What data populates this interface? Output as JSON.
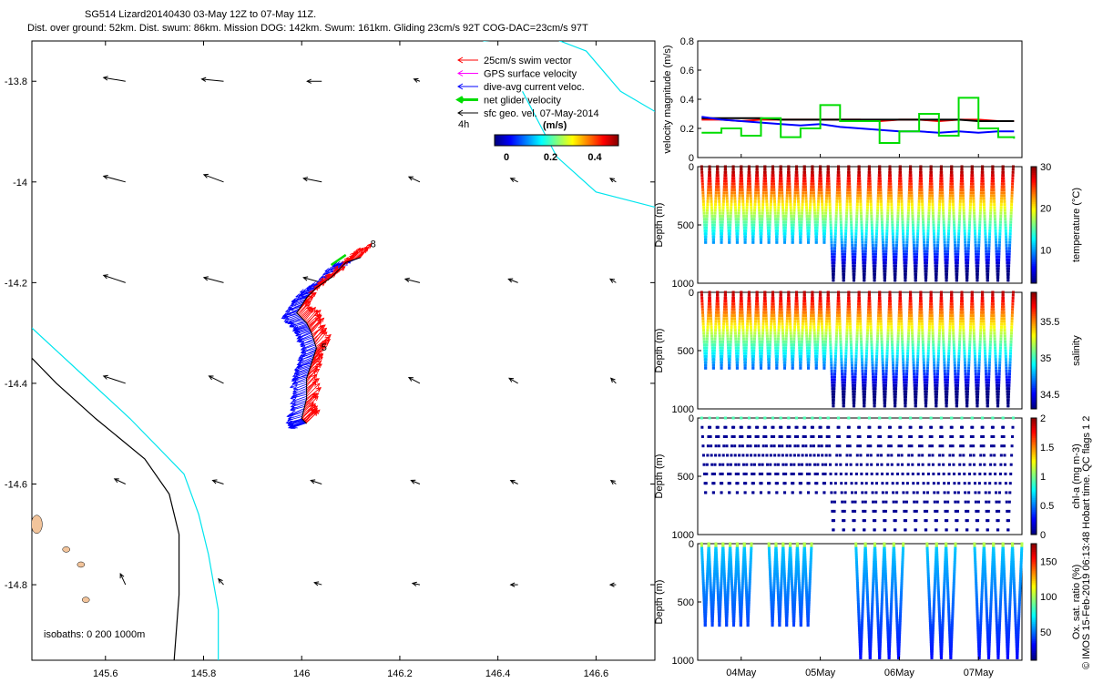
{
  "title": {
    "line1": "SG514 Lizard20140430 03-May 12Z to 07-May 11Z.",
    "line2": "Dist. over ground: 52km. Dist. swum: 86km. Mission DOG: 142km. Swum: 161km. Gliding 23cm/s 92T COG-DAC=23cm/s 97T"
  },
  "copyright": "© IMOS 15-Feb-2019 06:13:48 Hobart time. QC flags 1 2",
  "colors": {
    "red": "#ff0000",
    "magenta": "#ff00ff",
    "blue": "#0000ff",
    "green": "#00dd00",
    "black": "#000000",
    "cyan": "#00e5ee",
    "land": "#f2c49b"
  },
  "chart_data": [
    {
      "type": "scatter",
      "name": "track map",
      "xlim": [
        145.45,
        146.72
      ],
      "ylim": [
        -14.95,
        -13.72
      ],
      "xticks": [
        145.6,
        145.8,
        146,
        146.2,
        146.4,
        146.6
      ],
      "xtick_labels": [
        "145.6",
        "145.8",
        "146",
        "146.2",
        "146.4",
        "146.6"
      ],
      "yticks": [
        -13.8,
        -14,
        -14.2,
        -14.4,
        -14.6,
        -14.8
      ],
      "ytick_labels": [
        "-13.8",
        "-14",
        "-14.2",
        "-14.4",
        "-14.6",
        "-14.8"
      ],
      "legend": {
        "placement": "top-right",
        "items": [
          {
            "label": "25cm/s swim vector",
            "color": "#ff0000"
          },
          {
            "label": "GPS surface velocity",
            "color": "#ff00ff"
          },
          {
            "label": "dive-avg current veloc.",
            "color": "#0000ff"
          },
          {
            "label": "net glider velocity",
            "color": "#00dd00"
          },
          {
            "label": "sfc geo. vel. 07-May-2014",
            "color": "#000000"
          }
        ],
        "time_label": "4h",
        "colorbar_title": "(m/s)",
        "colorbar_ticks": [
          "0",
          "0.2",
          "0.4"
        ]
      },
      "isobaths_label": "isobaths: 0   200  1000m",
      "track_labels": [
        "8",
        "5"
      ],
      "track": [
        [
          146.12,
          -14.15
        ],
        [
          146.09,
          -14.16
        ],
        [
          146.06,
          -14.19
        ],
        [
          146.03,
          -14.21
        ],
        [
          146.01,
          -14.23
        ],
        [
          145.99,
          -14.26
        ],
        [
          146.01,
          -14.28
        ],
        [
          146.02,
          -14.3
        ],
        [
          146.03,
          -14.33
        ],
        [
          146.02,
          -14.36
        ],
        [
          146.01,
          -14.39
        ],
        [
          146.01,
          -14.43
        ],
        [
          146.0,
          -14.47
        ],
        [
          146.01,
          -14.48
        ]
      ],
      "geo_arrows": [
        {
          "lon": 145.6,
          "lat": -13.8,
          "u": -0.3,
          "v": 0.05
        },
        {
          "lon": 145.8,
          "lat": -13.8,
          "u": -0.3,
          "v": 0.03
        },
        {
          "lon": 146.0,
          "lat": -13.8,
          "u": -0.2,
          "v": 0.0
        },
        {
          "lon": 146.2,
          "lat": -13.8,
          "u": -0.08,
          "v": 0.03
        },
        {
          "lon": 145.6,
          "lat": -14.0,
          "u": -0.3,
          "v": 0.08
        },
        {
          "lon": 145.8,
          "lat": -14.0,
          "u": -0.27,
          "v": 0.1
        },
        {
          "lon": 146.0,
          "lat": -14.0,
          "u": -0.25,
          "v": 0.05
        },
        {
          "lon": 146.2,
          "lat": -14.0,
          "u": -0.15,
          "v": 0.07
        },
        {
          "lon": 146.4,
          "lat": -14.0,
          "u": -0.1,
          "v": 0.05
        },
        {
          "lon": 146.6,
          "lat": -14.0,
          "u": -0.08,
          "v": 0.05
        },
        {
          "lon": 145.6,
          "lat": -14.2,
          "u": -0.3,
          "v": 0.1
        },
        {
          "lon": 145.8,
          "lat": -14.2,
          "u": -0.27,
          "v": 0.07
        },
        {
          "lon": 146.0,
          "lat": -14.2,
          "u": -0.25,
          "v": 0.07
        },
        {
          "lon": 146.2,
          "lat": -14.2,
          "u": -0.2,
          "v": 0.05
        },
        {
          "lon": 146.4,
          "lat": -14.2,
          "u": -0.13,
          "v": 0.05
        },
        {
          "lon": 146.6,
          "lat": -14.2,
          "u": -0.08,
          "v": 0.05
        },
        {
          "lon": 145.6,
          "lat": -14.4,
          "u": -0.3,
          "v": 0.1
        },
        {
          "lon": 145.8,
          "lat": -14.4,
          "u": -0.2,
          "v": 0.1
        },
        {
          "lon": 146.2,
          "lat": -14.4,
          "u": -0.15,
          "v": 0.08
        },
        {
          "lon": 146.4,
          "lat": -14.4,
          "u": -0.12,
          "v": 0.07
        },
        {
          "lon": 146.6,
          "lat": -14.4,
          "u": -0.07,
          "v": 0.07
        },
        {
          "lon": 145.6,
          "lat": -14.6,
          "u": -0.15,
          "v": 0.07
        },
        {
          "lon": 145.8,
          "lat": -14.6,
          "u": -0.15,
          "v": 0.05
        },
        {
          "lon": 146.0,
          "lat": -14.6,
          "u": -0.15,
          "v": 0.05
        },
        {
          "lon": 146.2,
          "lat": -14.6,
          "u": -0.12,
          "v": 0.05
        },
        {
          "lon": 146.4,
          "lat": -14.6,
          "u": -0.1,
          "v": 0.05
        },
        {
          "lon": 146.6,
          "lat": -14.6,
          "u": -0.07,
          "v": 0.05
        },
        {
          "lon": 145.6,
          "lat": -14.8,
          "u": -0.07,
          "v": 0.15
        },
        {
          "lon": 145.8,
          "lat": -14.8,
          "u": -0.07,
          "v": 0.08
        },
        {
          "lon": 146.0,
          "lat": -14.8,
          "u": -0.1,
          "v": 0.03
        },
        {
          "lon": 146.2,
          "lat": -14.8,
          "u": -0.1,
          "v": 0.02
        },
        {
          "lon": 146.4,
          "lat": -14.8,
          "u": -0.1,
          "v": 0.0
        },
        {
          "lon": 146.6,
          "lat": -14.8,
          "u": -0.08,
          "v": 0.0
        }
      ],
      "isobath_0": [
        [
          145.45,
          -14.35
        ],
        [
          145.5,
          -14.4
        ],
        [
          145.58,
          -14.47
        ],
        [
          145.68,
          -14.55
        ],
        [
          145.73,
          -14.62
        ],
        [
          145.75,
          -14.7
        ],
        [
          145.75,
          -14.82
        ],
        [
          145.74,
          -14.95
        ]
      ],
      "isobath_200": [
        [
          145.45,
          -14.29
        ],
        [
          145.55,
          -14.38
        ],
        [
          145.65,
          -14.47
        ],
        [
          145.76,
          -14.58
        ],
        [
          145.79,
          -14.66
        ],
        [
          145.81,
          -14.74
        ],
        [
          145.83,
          -14.85
        ],
        [
          145.83,
          -14.95
        ]
      ],
      "isobath_top": [
        [
          146.37,
          -13.72
        ],
        [
          146.5,
          -13.71
        ],
        [
          146.58,
          -13.74
        ],
        [
          146.65,
          -13.82
        ],
        [
          146.72,
          -13.86
        ]
      ],
      "isobath_top2": [
        [
          146.45,
          -13.82
        ],
        [
          146.52,
          -13.95
        ],
        [
          146.6,
          -14.02
        ],
        [
          146.72,
          -14.05
        ]
      ]
    },
    {
      "type": "line",
      "name": "velocity",
      "ylabel": "velocity magnitude (m/s)",
      "ylim": [
        0,
        0.8
      ],
      "yticks": [
        0,
        0.2,
        0.4,
        0.6,
        0.8
      ],
      "ytick_labels": [
        "0",
        "0.2",
        "0.4",
        "0.6",
        "0.8"
      ],
      "x_days": [
        3.5,
        3.75,
        4.0,
        4.25,
        4.5,
        4.75,
        5.0,
        5.25,
        5.5,
        5.75,
        6.0,
        6.25,
        6.5,
        6.75,
        7.0,
        7.25,
        7.45
      ],
      "series": [
        {
          "color": "#ff0000",
          "values": [
            0.26,
            0.26,
            0.25,
            0.26,
            0.26,
            0.26,
            0.26,
            0.26,
            0.26,
            0.25,
            0.26,
            0.26,
            0.25,
            0.26,
            0.26,
            0.25,
            0.25
          ]
        },
        {
          "color": "#000000",
          "values": [
            0.27,
            0.27,
            0.27,
            0.27,
            0.26,
            0.26,
            0.26,
            0.26,
            0.26,
            0.26,
            0.26,
            0.26,
            0.26,
            0.26,
            0.25,
            0.25,
            0.25
          ]
        },
        {
          "color": "#0000ff",
          "values": [
            0.28,
            0.26,
            0.25,
            0.24,
            0.23,
            0.22,
            0.23,
            0.21,
            0.2,
            0.19,
            0.18,
            0.18,
            0.17,
            0.18,
            0.17,
            0.18,
            0.18
          ]
        },
        {
          "color": "#00dd00",
          "values": [
            0.17,
            0.2,
            0.15,
            0.27,
            0.14,
            0.2,
            0.36,
            0.25,
            0.25,
            0.1,
            0.18,
            0.3,
            0.15,
            0.41,
            0.2,
            0.14,
            0.13
          ]
        }
      ]
    },
    {
      "type": "scatter",
      "name": "temperature section",
      "ylabel": "Depth (m)",
      "cbar_label": "temperature (°C)",
      "ylim": [
        0,
        1000
      ],
      "yticks": [
        0,
        500,
        1000
      ],
      "ytick_labels": [
        "0",
        "500",
        "1000"
      ],
      "clim": [
        2,
        30
      ],
      "cbar_ticks": [
        10,
        20,
        30
      ],
      "cbar_tick_labels": [
        "10",
        "20",
        "30"
      ],
      "first_dive_max_depth": 700,
      "dives": 34,
      "deep_after_day": 5.0
    },
    {
      "type": "scatter",
      "name": "salinity section",
      "ylabel": "Depth (m)",
      "cbar_label": "salinity",
      "ylim": [
        0,
        1000
      ],
      "yticks": [
        0,
        500,
        1000
      ],
      "ytick_labels": [
        "0",
        "500",
        "1000"
      ],
      "clim": [
        34.3,
        35.9
      ],
      "cbar_ticks": [
        34.5,
        35,
        35.5
      ],
      "cbar_tick_labels": [
        "34.5",
        "35",
        "35.5"
      ],
      "dives": 34
    },
    {
      "type": "scatter",
      "name": "chl-a section",
      "ylabel": "Depth (m)",
      "cbar_label": "chl-a (mg m-3)",
      "ylim": [
        0,
        1000
      ],
      "yticks": [
        0,
        500,
        1000
      ],
      "ytick_labels": [
        "0",
        "500",
        "1000"
      ],
      "clim": [
        0,
        2
      ],
      "cbar_ticks": [
        0,
        0.5,
        1,
        1.5,
        2
      ],
      "cbar_tick_labels": [
        "0",
        "0.5",
        "1",
        "1.5",
        "2"
      ]
    },
    {
      "type": "scatter",
      "name": "oxygen section",
      "ylabel": "Depth (m)",
      "cbar_label": "Ox. sat. ratio (%)",
      "ylim": [
        0,
        1000
      ],
      "yticks": [
        0,
        500,
        1000
      ],
      "ytick_labels": [
        "0",
        "500",
        "1000"
      ],
      "clim": [
        10,
        175
      ],
      "cbar_ticks": [
        50,
        100,
        150
      ],
      "cbar_tick_labels": [
        "50",
        "100",
        "150"
      ],
      "x_ticks_days": [
        4,
        5,
        6,
        7
      ],
      "x_tick_labels": [
        "04May",
        "05May",
        "06May",
        "07May"
      ]
    }
  ]
}
